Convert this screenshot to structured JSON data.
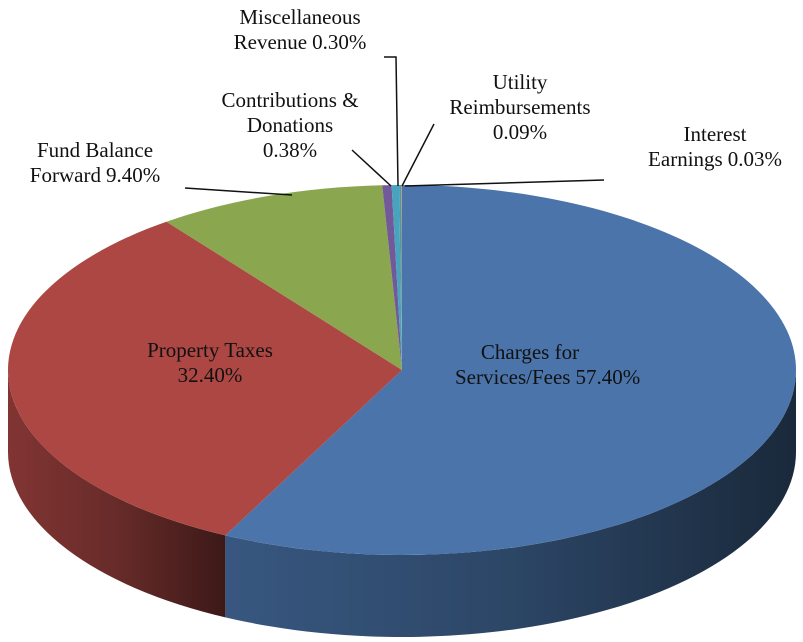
{
  "chart_data": {
    "type": "pie",
    "categories": [
      "Charges for Services/Fees",
      "Property Taxes",
      "Fund Balance Forward",
      "Contributions & Donations",
      "Miscellaneous Revenue",
      "Utility Reimbursements",
      "Interest Earnings"
    ],
    "values": [
      57.4,
      32.4,
      9.4,
      0.38,
      0.3,
      0.09,
      0.03
    ],
    "value_labels": [
      "57.40%",
      "32.40%",
      "9.40%",
      "0.38%",
      "0.30%",
      "0.09%",
      "0.03%"
    ],
    "colors": [
      "#4a74aa",
      "#ac4744",
      "#8aa64f",
      "#72599a",
      "#4aa3bd",
      "#3b9ec0",
      "#e8873a"
    ],
    "three_d": true
  }
}
